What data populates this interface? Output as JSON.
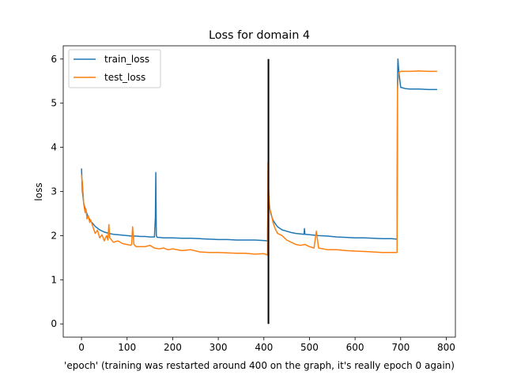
{
  "chart_data": {
    "type": "line",
    "title": "Loss for domain 4",
    "xlabel": "'epoch' (training was restarted around 400 on the graph, it's really epoch 0 again)",
    "ylabel": "loss",
    "xlim": [
      -40,
      820
    ],
    "ylim": [
      -0.3,
      6.3
    ],
    "xticks": [
      0,
      100,
      200,
      300,
      400,
      500,
      600,
      700,
      800
    ],
    "yticks": [
      0,
      1,
      2,
      3,
      4,
      5,
      6
    ],
    "grid": false,
    "legend_position": "top-left",
    "vertical_line": {
      "x": 410,
      "y_range": [
        0,
        6
      ],
      "color": "#000000"
    },
    "series": [
      {
        "name": "train_loss",
        "color": "#1f77b4",
        "x": [
          0,
          2,
          5,
          10,
          15,
          20,
          25,
          30,
          40,
          50,
          60,
          70,
          80,
          90,
          100,
          110,
          120,
          130,
          140,
          150,
          160,
          162,
          163,
          164,
          166,
          170,
          180,
          200,
          220,
          240,
          260,
          280,
          300,
          320,
          340,
          360,
          380,
          400,
          408,
          409,
          410,
          412,
          415,
          420,
          425,
          430,
          440,
          450,
          460,
          470,
          480,
          488,
          489,
          490,
          500,
          520,
          540,
          560,
          580,
          600,
          620,
          640,
          660,
          680,
          692,
          693,
          694,
          696,
          700,
          710,
          720,
          740,
          760,
          780
        ],
        "y": [
          3.52,
          3.0,
          2.72,
          2.55,
          2.42,
          2.33,
          2.27,
          2.21,
          2.13,
          2.08,
          2.05,
          2.03,
          2.02,
          2.01,
          2.0,
          1.99,
          1.99,
          1.98,
          1.98,
          1.97,
          1.97,
          2.4,
          3.43,
          2.0,
          1.96,
          1.96,
          1.95,
          1.95,
          1.94,
          1.94,
          1.93,
          1.92,
          1.91,
          1.91,
          1.9,
          1.9,
          1.9,
          1.89,
          1.88,
          3.0,
          2.9,
          2.68,
          2.5,
          2.35,
          2.27,
          2.2,
          2.13,
          2.1,
          2.07,
          2.05,
          2.04,
          2.03,
          2.16,
          2.03,
          2.02,
          2.0,
          1.99,
          1.97,
          1.96,
          1.95,
          1.95,
          1.94,
          1.93,
          1.93,
          1.92,
          5.5,
          6.0,
          5.7,
          5.36,
          5.33,
          5.32,
          5.32,
          5.31,
          5.31
        ]
      },
      {
        "name": "test_loss",
        "color": "#ff7f0e",
        "x": [
          0,
          2,
          5,
          8,
          10,
          12,
          15,
          18,
          20,
          25,
          30,
          35,
          40,
          45,
          50,
          55,
          58,
          60,
          62,
          70,
          80,
          90,
          100,
          108,
          110,
          112,
          115,
          120,
          140,
          150,
          160,
          170,
          180,
          190,
          200,
          220,
          240,
          260,
          280,
          300,
          320,
          340,
          360,
          380,
          400,
          408,
          409,
          410,
          411,
          413,
          416,
          420,
          425,
          430,
          440,
          450,
          460,
          470,
          480,
          490,
          500,
          510,
          515,
          520,
          540,
          560,
          580,
          600,
          620,
          640,
          660,
          680,
          692,
          693,
          695,
          697,
          700,
          720,
          740,
          760,
          780
        ],
        "y": [
          3.38,
          3.2,
          2.7,
          2.52,
          2.6,
          2.38,
          2.45,
          2.3,
          2.36,
          2.2,
          2.05,
          2.12,
          1.95,
          2.02,
          1.88,
          2.0,
          1.9,
          2.25,
          1.95,
          1.85,
          1.88,
          1.82,
          1.8,
          1.78,
          1.8,
          2.2,
          1.8,
          1.75,
          1.75,
          1.78,
          1.72,
          1.7,
          1.72,
          1.68,
          1.7,
          1.66,
          1.68,
          1.63,
          1.62,
          1.62,
          1.61,
          1.6,
          1.6,
          1.58,
          1.59,
          1.56,
          3.65,
          3.2,
          2.9,
          2.6,
          2.5,
          2.3,
          2.15,
          2.05,
          2.0,
          1.9,
          1.85,
          1.8,
          1.78,
          1.8,
          1.75,
          1.72,
          2.1,
          1.72,
          1.68,
          1.68,
          1.66,
          1.65,
          1.64,
          1.63,
          1.62,
          1.62,
          1.62,
          5.3,
          5.68,
          5.7,
          5.72,
          5.72,
          5.73,
          5.72,
          5.72
        ]
      }
    ]
  }
}
